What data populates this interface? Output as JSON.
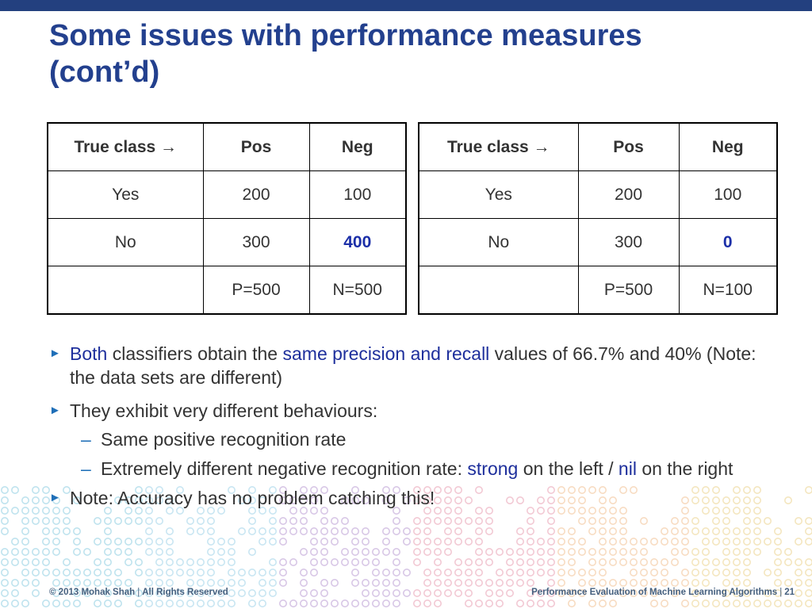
{
  "slide": {
    "title_line1": "Some issues with performance measures",
    "title_line2": "(cont’d)"
  },
  "tables": {
    "left": {
      "header": {
        "label": "True class",
        "arrow": "→",
        "col1": "Pos",
        "col2": "Neg"
      },
      "rows": [
        {
          "label": "Yes",
          "pos": "200",
          "neg": "100"
        },
        {
          "label": "No",
          "pos": "300",
          "neg": "400"
        }
      ],
      "totals": {
        "label": "",
        "pos": "P=500",
        "neg": "N=500"
      }
    },
    "right": {
      "header": {
        "label": "True class",
        "arrow": "→",
        "col1": "Pos",
        "col2": "Neg"
      },
      "rows": [
        {
          "label": "Yes",
          "pos": "200",
          "neg": "100"
        },
        {
          "label": "No",
          "pos": "300",
          "neg": "0"
        }
      ],
      "totals": {
        "label": "",
        "pos": "P=500",
        "neg": "N=100"
      }
    }
  },
  "bullets": {
    "marker": "►",
    "sub_marker": "–",
    "b1": {
      "hl1": "Both",
      "t1": " classifiers obtain the ",
      "hl2": "same precision and recall",
      "t2": " values of 66.7% and 40% (Note: the data sets are different)"
    },
    "b2": {
      "text": "They exhibit very different behaviours:"
    },
    "b2_sub1": {
      "text": "Same positive recognition rate"
    },
    "b2_sub2": {
      "t1": "Extremely different negative recognition rate: ",
      "hl1": "strong",
      "t2": " on the left / ",
      "hl2": "nil",
      "t3": " on the right"
    },
    "b3": {
      "text": "Note: Accuracy has no problem catching this!"
    }
  },
  "footer": {
    "copyright": "© 2013 Mohak Shah",
    "rights": "All Rights Reserved",
    "course": "Performance Evaluation of  Machine Learning Algorithms",
    "page_number": "21",
    "separator": "|"
  },
  "colors": {
    "title": "#23408e",
    "top_bar": "#23407f",
    "highlight_blue": "#1e2f9c",
    "bullet_marker": "#1f6fb8"
  }
}
